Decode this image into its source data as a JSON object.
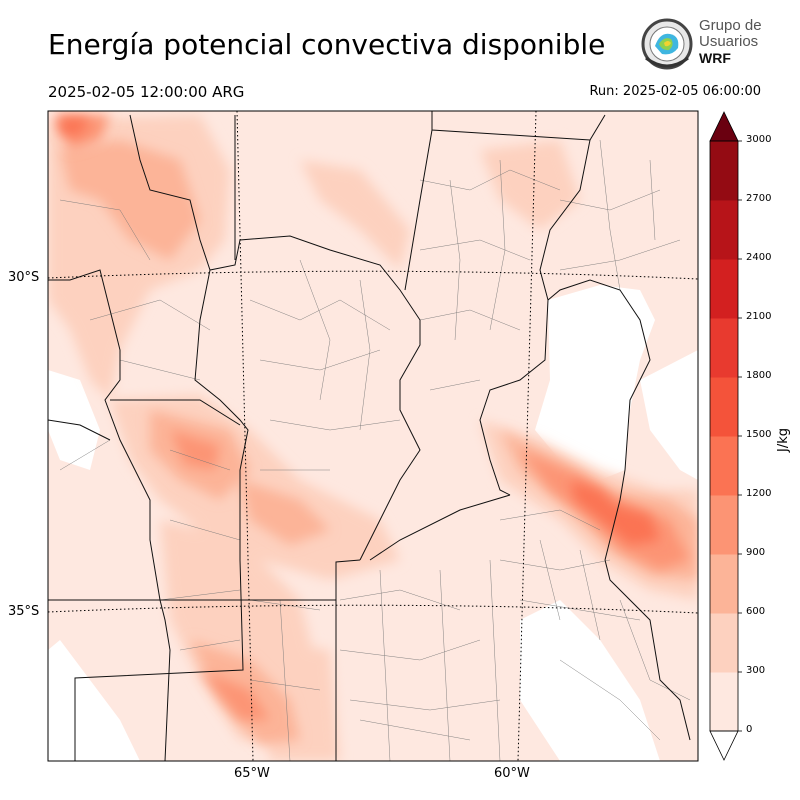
{
  "header": {
    "title": "Energía potencial convectiva disponible",
    "valid_time": "2025-02-05 12:00:00 ARG",
    "run_time": "Run: 2025-02-05 06:00:00"
  },
  "logo": {
    "line1": "Grupo de",
    "line2": "Usuarios",
    "line3": "WRF"
  },
  "map": {
    "lat_labels": [
      "30°S",
      "35°S"
    ],
    "lon_labels": [
      "65°W",
      "60°W"
    ]
  },
  "colorbar": {
    "unit_label": "J/kg",
    "ticks": [
      "0",
      "300",
      "600",
      "900",
      "1200",
      "1500",
      "1800",
      "2100",
      "2400",
      "2700",
      "3000"
    ],
    "colors": [
      "#fee8e0",
      "#fdd1bf",
      "#fcb498",
      "#fc9474",
      "#fb7353",
      "#f4533a",
      "#e83a2f",
      "#d32020",
      "#b71419",
      "#940b13",
      "#6a0010"
    ]
  }
}
